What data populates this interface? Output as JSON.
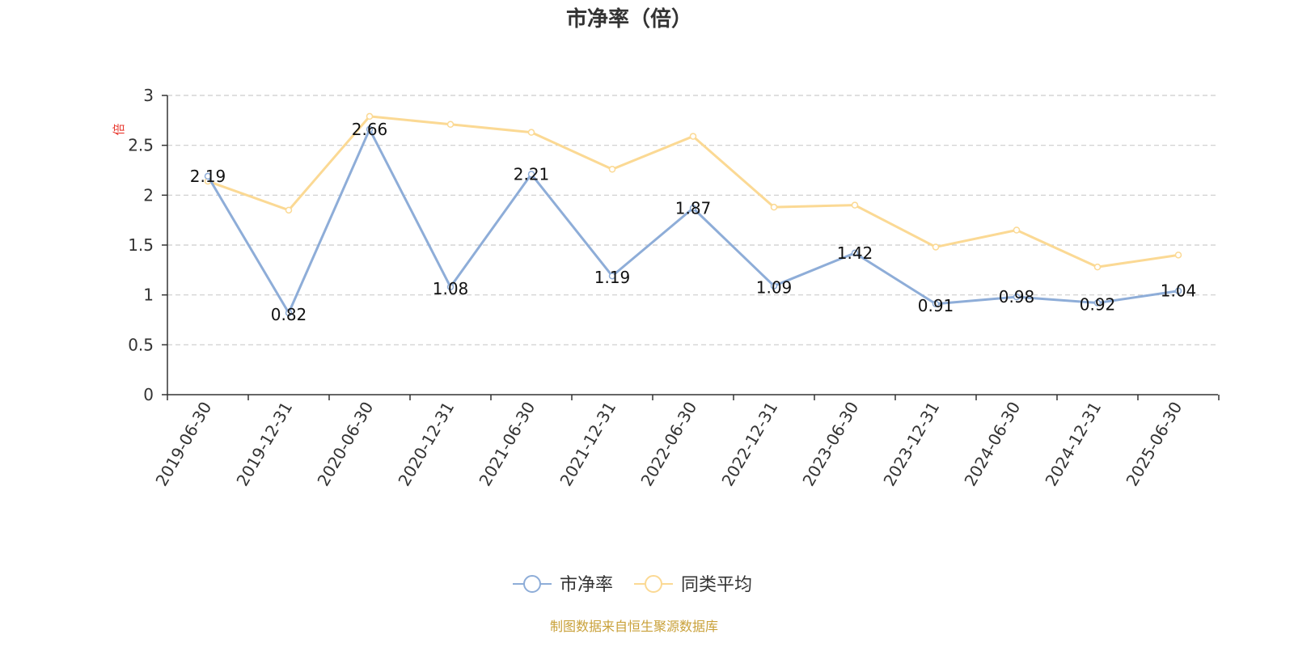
{
  "chart_data": {
    "type": "line",
    "title": "市净率（倍）",
    "ylabel": "倍",
    "xlabel": "",
    "ylim": [
      0,
      3
    ],
    "yticks": [
      0,
      0.5,
      1,
      1.5,
      2,
      2.5,
      3
    ],
    "ytick_labels": [
      "0",
      "0.5",
      "1",
      "1.5",
      "2",
      "2.5",
      "3"
    ],
    "grid": true,
    "legend_position": "bottom",
    "categories": [
      "2019-06-30",
      "2019-12-31",
      "2020-06-30",
      "2020-12-31",
      "2021-06-30",
      "2021-12-31",
      "2022-06-30",
      "2022-12-31",
      "2023-06-30",
      "2023-12-31",
      "2024-06-30",
      "2024-12-31",
      "2025-06-30"
    ],
    "series": [
      {
        "name": "市净率",
        "color": "#8eadd8",
        "values": [
          2.19,
          0.82,
          2.66,
          1.08,
          2.21,
          1.19,
          1.87,
          1.09,
          1.42,
          0.91,
          0.98,
          0.92,
          1.04
        ],
        "labels": [
          "2.19",
          "0.82",
          "2.66",
          "1.08",
          "2.21",
          "1.19",
          "1.87",
          "1.09",
          "1.42",
          "0.91",
          "0.98",
          "0.92",
          "1.04"
        ]
      },
      {
        "name": "同类平均",
        "color": "#fbd994",
        "values": [
          2.14,
          1.85,
          2.79,
          2.71,
          2.63,
          2.26,
          2.59,
          1.88,
          1.9,
          1.48,
          1.65,
          1.28,
          1.4
        ]
      }
    ]
  },
  "source": "制图数据来自恒生聚源数据库"
}
